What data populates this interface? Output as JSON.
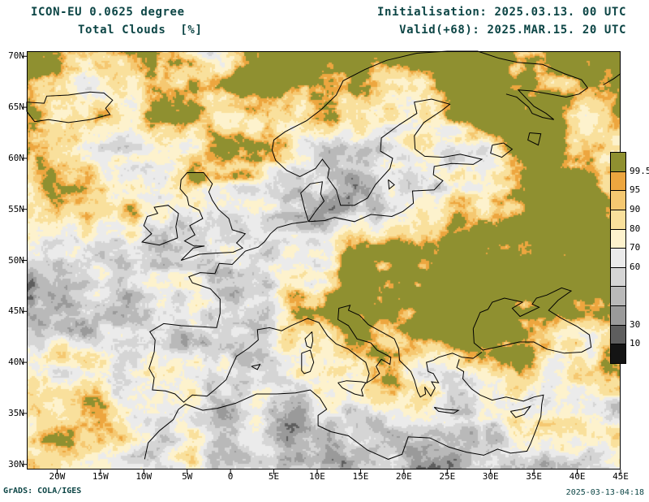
{
  "header": {
    "model_line": "ICON-EU 0.0625 degree",
    "variable_line": "Total Clouds  [%]",
    "init_line": "Initialisation: 2025.03.13. 00 UTC",
    "valid_line": "Valid(+68): 2025.MAR.15. 20 UTC"
  },
  "map": {
    "lat_ticks": [
      "70N",
      "65N",
      "60N",
      "55N",
      "50N",
      "45N",
      "40N",
      "35N",
      "30N"
    ],
    "lon_ticks": [
      "20W",
      "15W",
      "10W",
      "5W",
      "0",
      "5E",
      "10E",
      "15E",
      "20E",
      "25E",
      "30E",
      "35E",
      "40E",
      "45E"
    ]
  },
  "legend": {
    "labels_top_to_bottom": [
      "99.5",
      "95",
      "90",
      "80",
      "70",
      "60",
      "",
      "",
      "30",
      "10"
    ],
    "colors_top_to_bottom": [
      "#8f9030",
      "#eda63f",
      "#f5c871",
      "#f9e09c",
      "#fdf2cd",
      "#ebebeb",
      "#d5d5d5",
      "#b9b9b9",
      "#9a9a9a",
      "#5e5e5e",
      "#141414"
    ]
  },
  "footer": {
    "left": "GrADS: COLA/IGES",
    "right": "2025-03-13-04:18"
  },
  "colors": {
    "annotation": "#0c4545",
    "frame": "#000000",
    "background": "#ffffff"
  },
  "chart_data": {
    "type": "heatmap",
    "title": "Total Clouds  [%]",
    "model": "ICON-EU 0.0625 degree",
    "initialisation": "2025.03.13. 00 UTC",
    "valid": "Valid(+68): 2025.MAR.15. 20 UTC",
    "unit": "%",
    "x_axis": {
      "name": "longitude",
      "range_deg": [
        -23.5,
        45
      ],
      "ticks": [
        "20W",
        "15W",
        "10W",
        "5W",
        "0",
        "5E",
        "10E",
        "15E",
        "20E",
        "25E",
        "30E",
        "35E",
        "40E",
        "45E"
      ]
    },
    "y_axis": {
      "name": "latitude",
      "range_deg": [
        29.5,
        70.5
      ],
      "ticks": [
        "70N",
        "65N",
        "60N",
        "55N",
        "50N",
        "45N",
        "40N",
        "35N",
        "30N"
      ]
    },
    "levels_percent": [
      10,
      30,
      40,
      50,
      60,
      70,
      80,
      90,
      95,
      99.5
    ],
    "palette_low_to_high": [
      "#141414",
      "#5e5e5e",
      "#9a9a9a",
      "#b9b9b9",
      "#d5d5d5",
      "#ebebeb",
      "#fdf2cd",
      "#f9e09c",
      "#f5c871",
      "#eda63f",
      "#8f9030"
    ],
    "legend_position": "right"
  }
}
